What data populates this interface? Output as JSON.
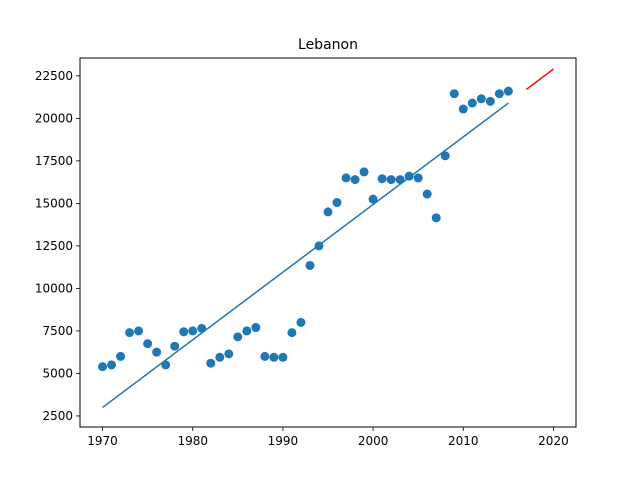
{
  "chart_data": {
    "type": "scatter",
    "title": "Lebanon",
    "xlabel": "",
    "ylabel": "",
    "xlim": [
      1967.5,
      2022.5
    ],
    "ylim": [
      1850,
      23550
    ],
    "xticks": [
      1970,
      1980,
      1990,
      2000,
      2010,
      2020
    ],
    "yticks": [
      2500,
      5000,
      7500,
      10000,
      12500,
      15000,
      17500,
      20000,
      22500
    ],
    "grid": false,
    "series": [
      {
        "kind": "scatter",
        "color": "#1f77b4",
        "points": [
          [
            1970,
            5400
          ],
          [
            1971,
            5500
          ],
          [
            1972,
            6000
          ],
          [
            1973,
            7400
          ],
          [
            1974,
            7500
          ],
          [
            1975,
            6750
          ],
          [
            1976,
            6250
          ],
          [
            1977,
            5500
          ],
          [
            1978,
            6600
          ],
          [
            1979,
            7450
          ],
          [
            1980,
            7500
          ],
          [
            1981,
            7650
          ],
          [
            1982,
            5600
          ],
          [
            1983,
            5950
          ],
          [
            1984,
            6150
          ],
          [
            1985,
            7150
          ],
          [
            1986,
            7500
          ],
          [
            1987,
            7700
          ],
          [
            1988,
            6000
          ],
          [
            1989,
            5950
          ],
          [
            1990,
            5950
          ],
          [
            1991,
            7400
          ],
          [
            1992,
            8000
          ],
          [
            1993,
            11350
          ],
          [
            1994,
            12500
          ],
          [
            1995,
            14500
          ],
          [
            1996,
            15050
          ],
          [
            1997,
            16500
          ],
          [
            1998,
            16400
          ],
          [
            1999,
            16850
          ],
          [
            2000,
            15250
          ],
          [
            2001,
            16450
          ],
          [
            2002,
            16400
          ],
          [
            2003,
            16400
          ],
          [
            2004,
            16600
          ],
          [
            2005,
            16500
          ],
          [
            2006,
            15550
          ],
          [
            2007,
            14150
          ],
          [
            2008,
            17800
          ],
          [
            2009,
            21450
          ],
          [
            2010,
            20550
          ],
          [
            2011,
            20900
          ],
          [
            2012,
            21150
          ],
          [
            2013,
            21000
          ],
          [
            2014,
            21450
          ],
          [
            2015,
            21600
          ]
        ]
      },
      {
        "kind": "line",
        "color": "#1f77b4",
        "points": [
          [
            1970,
            3000
          ],
          [
            2015,
            20900
          ]
        ]
      },
      {
        "kind": "line",
        "color": "#ff0000",
        "points": [
          [
            2017,
            21700
          ],
          [
            2020,
            22900
          ]
        ]
      }
    ]
  }
}
